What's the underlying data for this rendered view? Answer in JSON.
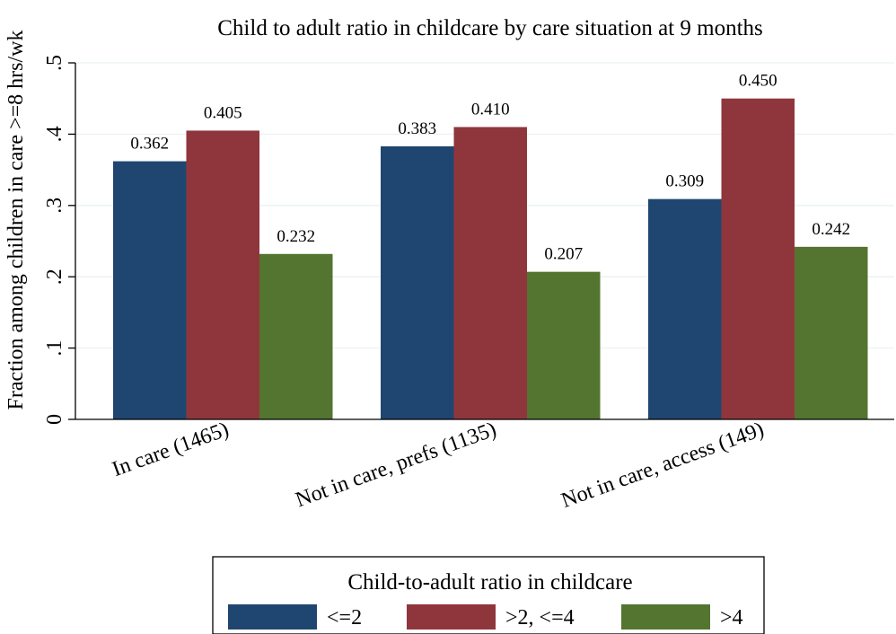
{
  "chart_data": {
    "type": "bar",
    "title": "Child to adult ratio in childcare by care situation at 9 months",
    "ylabel": "Fraction among children in care >=8 hrs/wk",
    "xlabel": "",
    "ylim": [
      0,
      0.5
    ],
    "yticks": [
      {
        "value": 0,
        "label": "0"
      },
      {
        "value": 0.1,
        "label": ".1"
      },
      {
        "value": 0.2,
        "label": ".2"
      },
      {
        "value": 0.3,
        "label": ".3"
      },
      {
        "value": 0.4,
        "label": ".4"
      },
      {
        "value": 0.5,
        "label": ".5"
      }
    ],
    "grid": true,
    "categories": [
      "In care (1465)",
      "Not in care, prefs (1135)",
      "Not in care, access (149)"
    ],
    "series": [
      {
        "name": "<=2",
        "color": "#1f4670",
        "values": [
          0.362,
          0.383,
          0.309
        ],
        "labels": [
          "0.362",
          "0.383",
          "0.309"
        ]
      },
      {
        "name": ">2, <=4",
        "color": "#8f363d",
        "values": [
          0.405,
          0.41,
          0.45
        ],
        "labels": [
          "0.405",
          "0.410",
          "0.450"
        ]
      },
      {
        "name": ">4",
        "color": "#537530",
        "values": [
          0.232,
          0.207,
          0.242
        ],
        "labels": [
          "0.232",
          "0.207",
          "0.242"
        ]
      }
    ],
    "legend": {
      "title": "Child-to-adult ratio in childcare",
      "position": "bottom-center"
    }
  }
}
